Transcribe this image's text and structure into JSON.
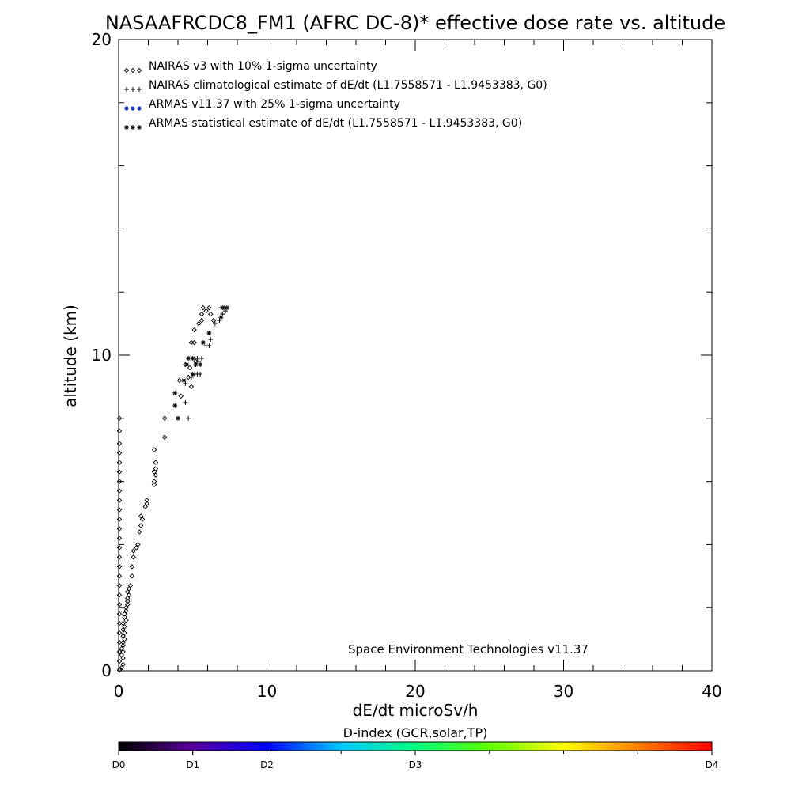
{
  "chart_data": {
    "type": "scatter",
    "title": "NASAAFRCDC8_FM1 (AFRC DC-8)* effective dose rate vs. altitude",
    "xlabel": "dE/dt microSv/h",
    "ylabel": "altitude (km)",
    "xlim": [
      0,
      40
    ],
    "ylim": [
      0,
      20
    ],
    "xticks": [
      "0",
      "10",
      "20",
      "30",
      "40"
    ],
    "yticks": [
      "0",
      "10",
      "20"
    ],
    "grid": false,
    "legend_position": "top-left",
    "annotation": "Space Environment Technologies v11.37",
    "legend": [
      {
        "symbol": "diamond",
        "color": "#000000",
        "label": "NAIRAS v3 with 10% 1-sigma uncertainty"
      },
      {
        "symbol": "plus",
        "color": "#000000",
        "label": "NAIRAS climatological estimate of dE/dt (L1.7558571 - L1.9453383, G0)"
      },
      {
        "symbol": "dot",
        "color": "#1a3cc8",
        "label": "ARMAS v11.37 with 25% 1-sigma uncertainty"
      },
      {
        "symbol": "asterisk",
        "color": "#000000",
        "label": "ARMAS statistical estimate of dE/dt (L1.7558571 - L1.9453383, G0)"
      }
    ],
    "series": [
      {
        "symbol": "diamond",
        "points": [
          [
            0.1,
            0.05
          ],
          [
            0.2,
            0.1
          ],
          [
            0.3,
            0.2
          ],
          [
            0.3,
            0.4
          ],
          [
            0.2,
            0.5
          ],
          [
            0.3,
            0.6
          ],
          [
            0.2,
            0.7
          ],
          [
            0.3,
            0.8
          ],
          [
            0.3,
            0.9
          ],
          [
            0.4,
            1.0
          ],
          [
            0.3,
            1.1
          ],
          [
            0.4,
            1.2
          ],
          [
            0.3,
            1.3
          ],
          [
            0.4,
            1.4
          ],
          [
            0.3,
            1.5
          ],
          [
            0.5,
            1.6
          ],
          [
            0.4,
            1.7
          ],
          [
            0.4,
            1.8
          ],
          [
            0.5,
            1.9
          ],
          [
            0.5,
            2.0
          ],
          [
            0.6,
            2.1
          ],
          [
            0.6,
            2.2
          ],
          [
            0.6,
            2.3
          ],
          [
            0.7,
            2.4
          ],
          [
            0.6,
            2.5
          ],
          [
            0.7,
            2.6
          ],
          [
            0.8,
            2.7
          ],
          [
            0.9,
            3.0
          ],
          [
            0.9,
            3.3
          ],
          [
            1.0,
            3.6
          ],
          [
            1.0,
            3.8
          ],
          [
            1.2,
            3.9
          ],
          [
            1.3,
            4.0
          ],
          [
            1.4,
            4.4
          ],
          [
            1.5,
            4.6
          ],
          [
            1.6,
            4.8
          ],
          [
            1.5,
            4.9
          ],
          [
            1.9,
            5.3
          ],
          [
            1.8,
            5.2
          ],
          [
            1.9,
            5.4
          ],
          [
            2.4,
            5.9
          ],
          [
            2.4,
            6.0
          ],
          [
            2.5,
            6.2
          ],
          [
            2.4,
            6.3
          ],
          [
            2.5,
            6.4
          ],
          [
            2.5,
            6.6
          ],
          [
            2.4,
            7.0
          ],
          [
            3.1,
            7.4
          ],
          [
            3.1,
            8.0
          ],
          [
            4.2,
            8.7
          ],
          [
            4.1,
            9.2
          ],
          [
            4.7,
            9.3
          ],
          [
            4.9,
            9.0
          ],
          [
            4.5,
            9.7
          ],
          [
            4.8,
            9.6
          ],
          [
            5.2,
            9.8
          ],
          [
            4.9,
            10.4
          ],
          [
            5.1,
            10.4
          ],
          [
            5.1,
            10.8
          ],
          [
            5.4,
            11.0
          ],
          [
            5.6,
            11.1
          ],
          [
            5.6,
            11.3
          ],
          [
            5.7,
            11.5
          ],
          [
            5.9,
            11.4
          ],
          [
            6.1,
            11.5
          ],
          [
            6.2,
            11.3
          ],
          [
            6.4,
            11.1
          ]
        ]
      },
      {
        "symbol": "plus",
        "points": [
          [
            4.7,
            8.0
          ],
          [
            4.5,
            8.5
          ],
          [
            4.5,
            9.1
          ],
          [
            4.9,
            9.3
          ],
          [
            5.3,
            9.4
          ],
          [
            5.5,
            9.4
          ],
          [
            5.4,
            9.8
          ],
          [
            5.3,
            9.9
          ],
          [
            5.6,
            9.9
          ],
          [
            5.9,
            10.3
          ],
          [
            6.1,
            10.3
          ],
          [
            6.2,
            10.5
          ],
          [
            6.5,
            11.0
          ],
          [
            6.8,
            11.1
          ],
          [
            7.0,
            11.3
          ],
          [
            7.2,
            11.4
          ],
          [
            7.1,
            11.5
          ],
          [
            6.9,
            11.5
          ]
        ]
      },
      {
        "symbol": "asterisk",
        "points": [
          [
            3.8,
            8.8
          ],
          [
            3.8,
            8.4
          ],
          [
            4.0,
            8.0
          ],
          [
            4.4,
            9.2
          ],
          [
            4.6,
            9.7
          ],
          [
            4.7,
            9.9
          ],
          [
            5.0,
            9.9
          ],
          [
            5.2,
            9.7
          ],
          [
            5.5,
            9.7
          ],
          [
            5.0,
            9.4
          ],
          [
            5.7,
            10.4
          ],
          [
            6.1,
            10.7
          ],
          [
            6.9,
            11.2
          ],
          [
            7.0,
            11.5
          ],
          [
            7.3,
            11.5
          ]
        ]
      },
      {
        "symbol": "diamond",
        "points": [
          [
            0.05,
            0.02
          ],
          [
            0.05,
            0.3
          ],
          [
            0.05,
            0.6
          ],
          [
            0.05,
            0.9
          ],
          [
            0.05,
            1.2
          ],
          [
            0.05,
            1.5
          ],
          [
            0.05,
            1.8
          ],
          [
            0.05,
            2.1
          ],
          [
            0.05,
            2.4
          ],
          [
            0.05,
            2.7
          ],
          [
            0.05,
            3.0
          ],
          [
            0.05,
            3.3
          ],
          [
            0.05,
            3.6
          ],
          [
            0.05,
            3.9
          ],
          [
            0.05,
            4.2
          ],
          [
            0.05,
            4.5
          ],
          [
            0.05,
            4.8
          ],
          [
            0.05,
            5.1
          ],
          [
            0.05,
            5.4
          ],
          [
            0.05,
            5.7
          ],
          [
            0.05,
            6.0
          ],
          [
            0.05,
            6.3
          ],
          [
            0.05,
            6.6
          ],
          [
            0.05,
            6.9
          ],
          [
            0.05,
            7.2
          ],
          [
            0.05,
            7.6
          ],
          [
            0.05,
            8.0
          ]
        ]
      }
    ],
    "colorbar": {
      "label": "D-index (GCR,solar,TP)",
      "ticks": [
        {
          "label": "D0",
          "pos": 0.0
        },
        {
          "label": "D1",
          "pos": 0.125
        },
        {
          "label": "D2",
          "pos": 0.25
        },
        {
          "label": "D3",
          "pos": 0.5
        },
        {
          "label": "D4",
          "pos": 1.0
        }
      ],
      "colors": [
        "#000000",
        "#5a009a",
        "#0000ff",
        "#00c8ff",
        "#00ff80",
        "#60ff00",
        "#ffff00",
        "#ff8000",
        "#ff0000"
      ]
    }
  }
}
